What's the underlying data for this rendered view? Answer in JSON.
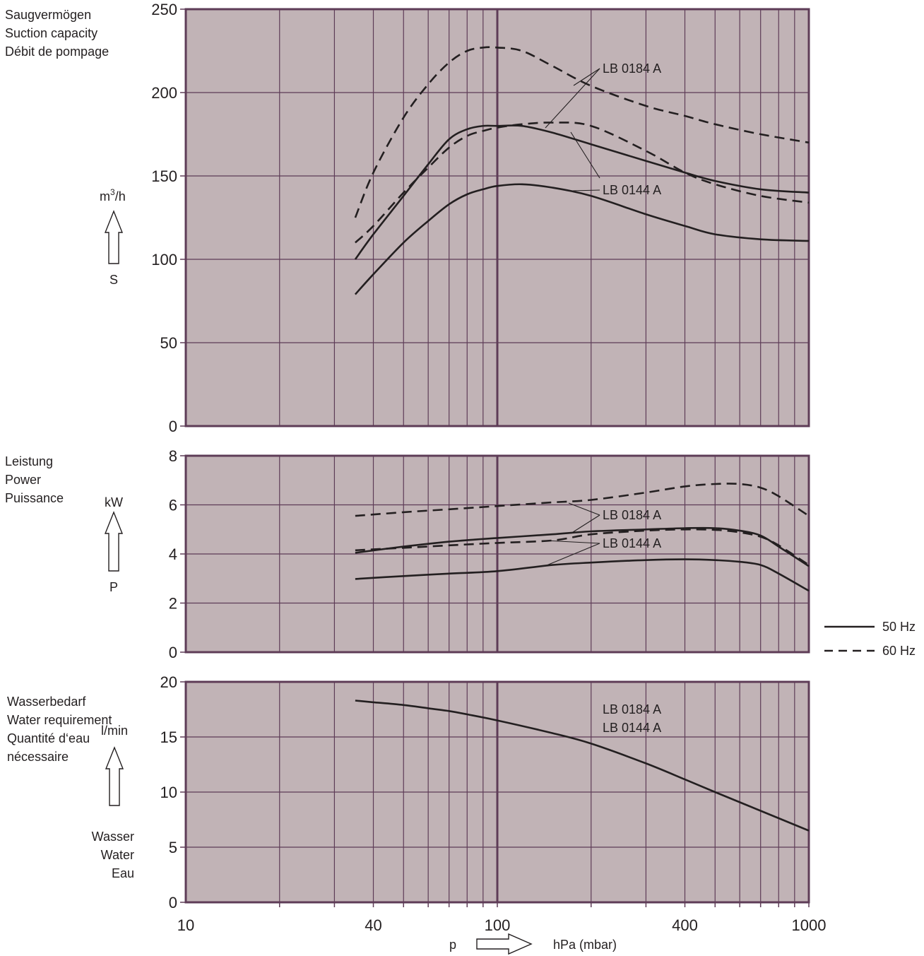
{
  "chart_data": [
    {
      "type": "line",
      "x_scale": "log",
      "xlim": [
        10,
        1000
      ],
      "ylim": [
        0,
        250
      ],
      "yticks": [
        0,
        50,
        100,
        150,
        200,
        250
      ],
      "ylabel_lines": [
        "Saugvermögen",
        "Suction capacity",
        "Débit de pompage"
      ],
      "unit": "m³/h",
      "symbol": "S",
      "annotations": [
        "LB 0184 A",
        "LB 0144 A"
      ],
      "series": [
        {
          "model": "LB 0184 A",
          "freq": "60 Hz",
          "style": "dashed",
          "x": [
            35,
            40,
            50,
            60,
            70,
            80,
            90,
            100,
            120,
            150,
            200,
            300,
            400,
            500,
            700,
            1000
          ],
          "y": [
            125,
            152,
            185,
            205,
            218,
            225,
            227,
            227,
            225,
            216,
            204,
            192,
            186,
            181,
            175,
            170
          ]
        },
        {
          "model": "LB 0184 A",
          "freq": "50 Hz",
          "style": "solid",
          "x": [
            35,
            40,
            50,
            60,
            70,
            80,
            90,
            100,
            120,
            150,
            200,
            300,
            400,
            500,
            700,
            1000
          ],
          "y": [
            100,
            115,
            138,
            157,
            172,
            178,
            180,
            180,
            180,
            176,
            169,
            159,
            152,
            147,
            142,
            140
          ]
        },
        {
          "model": "LB 0144 A",
          "freq": "60 Hz",
          "style": "dashed",
          "x": [
            35,
            40,
            50,
            60,
            70,
            80,
            90,
            100,
            120,
            150,
            200,
            300,
            400,
            500,
            700,
            1000
          ],
          "y": [
            110,
            120,
            140,
            155,
            167,
            174,
            177,
            179,
            181,
            182,
            180,
            165,
            152,
            145,
            138,
            134
          ]
        },
        {
          "model": "LB 0144 A",
          "freq": "50 Hz",
          "style": "solid",
          "x": [
            35,
            40,
            50,
            60,
            70,
            80,
            90,
            100,
            120,
            150,
            200,
            300,
            400,
            500,
            700,
            1000
          ],
          "y": [
            79,
            91,
            110,
            123,
            133,
            139,
            142,
            144,
            145,
            143,
            138,
            127,
            120,
            115,
            112,
            111
          ]
        }
      ]
    },
    {
      "type": "line",
      "x_scale": "log",
      "xlim": [
        10,
        1000
      ],
      "ylim": [
        0,
        8
      ],
      "yticks": [
        0,
        2,
        4,
        6,
        8
      ],
      "ylabel_lines": [
        "Leistung",
        "Power",
        "Puissance"
      ],
      "unit": "kW",
      "symbol": "P",
      "annotations": [
        "LB 0184 A",
        "LB 0144 A"
      ],
      "series": [
        {
          "model": "LB 0184 A",
          "freq": "60 Hz",
          "style": "dashed",
          "x": [
            35,
            50,
            70,
            100,
            150,
            200,
            300,
            400,
            500,
            600,
            700,
            800,
            1000
          ],
          "y": [
            5.55,
            5.7,
            5.82,
            5.95,
            6.1,
            6.2,
            6.5,
            6.75,
            6.85,
            6.85,
            6.7,
            6.35,
            5.55
          ]
        },
        {
          "model": "LB 0184 A",
          "freq": "50 Hz",
          "style": "solid",
          "x": [
            35,
            50,
            70,
            100,
            150,
            200,
            300,
            400,
            500,
            600,
            700,
            800,
            1000
          ],
          "y": [
            4.05,
            4.3,
            4.5,
            4.65,
            4.8,
            4.92,
            5.0,
            5.05,
            5.05,
            4.95,
            4.75,
            4.3,
            3.5
          ]
        },
        {
          "model": "LB 0144 A",
          "freq": "60 Hz",
          "style": "dashed",
          "x": [
            35,
            50,
            70,
            100,
            150,
            200,
            300,
            400,
            500,
            600,
            700,
            800,
            1000
          ],
          "y": [
            4.15,
            4.25,
            4.35,
            4.45,
            4.55,
            4.8,
            4.95,
            5.0,
            4.98,
            4.88,
            4.7,
            4.35,
            3.55
          ]
        },
        {
          "model": "LB 0144 A",
          "freq": "50 Hz",
          "style": "solid",
          "x": [
            35,
            50,
            70,
            100,
            150,
            200,
            300,
            400,
            500,
            600,
            700,
            800,
            1000
          ],
          "y": [
            2.98,
            3.1,
            3.2,
            3.3,
            3.55,
            3.65,
            3.75,
            3.78,
            3.75,
            3.68,
            3.55,
            3.2,
            2.5
          ]
        }
      ]
    },
    {
      "type": "line",
      "x_scale": "log",
      "xlim": [
        10,
        1000
      ],
      "ylim": [
        0,
        20
      ],
      "yticks": [
        0,
        5,
        10,
        15,
        20
      ],
      "ylabel_lines": [
        "Wasserbedarf",
        "Water requirement",
        "Quantité d‘eau",
        "nécessaire"
      ],
      "unit": "l/min",
      "symbol_lines": [
        "Wasser",
        "Water",
        "Eau"
      ],
      "annotations": [
        "LB 0184 A",
        "LB 0144 A"
      ],
      "series": [
        {
          "model": "LB 0184 A / LB 0144 A",
          "freq": "50 Hz",
          "style": "solid",
          "x": [
            35,
            40,
            50,
            60,
            70,
            80,
            100,
            150,
            200,
            300,
            400,
            500,
            700,
            1000
          ],
          "y": [
            18.3,
            18.15,
            17.9,
            17.6,
            17.35,
            17.05,
            16.5,
            15.35,
            14.4,
            12.6,
            11.15,
            10.0,
            8.3,
            6.5
          ]
        }
      ]
    }
  ],
  "x_axis": {
    "ticks": [
      10,
      40,
      100,
      400,
      1000
    ],
    "symbol": "p",
    "unit": "hPa (mbar)"
  },
  "legend": {
    "position": "right",
    "items": [
      {
        "label": "50 Hz",
        "style": "solid"
      },
      {
        "label": "60 Hz",
        "style": "dashed"
      }
    ]
  },
  "colors": {
    "plot_bg": "#c1b3b6",
    "grid": "#5e3c57",
    "curve": "#231f20",
    "text": "#231f20"
  }
}
